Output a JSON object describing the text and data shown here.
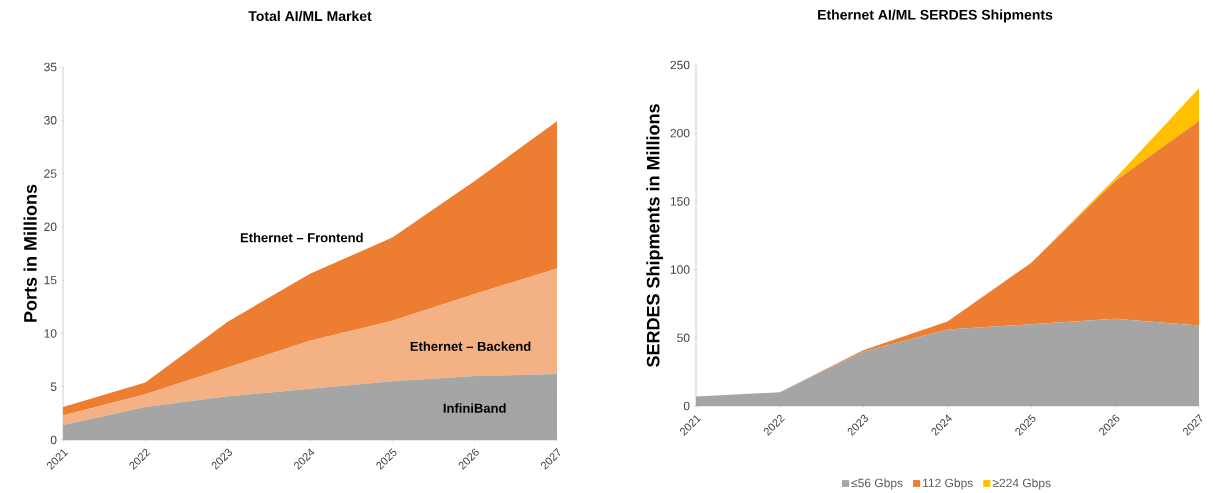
{
  "chart_data": [
    {
      "type": "area",
      "title": "Total AI/ML Market",
      "ylabel": "Ports in Millions",
      "stacked": true,
      "categories": [
        "2021",
        "2022",
        "2023",
        "2024",
        "2025",
        "2026",
        "2027"
      ],
      "ylim": [
        0,
        35
      ],
      "yticks": [
        0,
        5,
        10,
        15,
        20,
        25,
        30,
        35
      ],
      "grid": false,
      "legend": false,
      "series": [
        {
          "name": "InfiniBand",
          "color": "#a5a5a5",
          "values": [
            1.4,
            3.1,
            4.1,
            4.8,
            5.5,
            6.0,
            6.2
          ]
        },
        {
          "name": "Ethernet – Backend",
          "color": "#f4b183",
          "values": [
            0.9,
            1.2,
            2.7,
            4.5,
            5.7,
            7.7,
            9.9
          ]
        },
        {
          "name": "Ethernet – Frontend",
          "color": "#ed7d31",
          "values": [
            0.8,
            1.1,
            4.3,
            6.3,
            7.8,
            10.6,
            13.8
          ]
        }
      ]
    },
    {
      "type": "area",
      "title": "Ethernet AI/ML SERDES Shipments",
      "ylabel": "SERDES Shipments in Millions",
      "stacked": true,
      "categories": [
        "2021",
        "2022",
        "2023",
        "2024",
        "2025",
        "2026",
        "2027"
      ],
      "ylim": [
        0,
        250
      ],
      "yticks": [
        0,
        50,
        100,
        150,
        200,
        250
      ],
      "grid": false,
      "legend": "bottom",
      "series": [
        {
          "name": "≤56 Gbps",
          "color": "#a5a5a5",
          "values": [
            7,
            10,
            40,
            56,
            60,
            64,
            59
          ]
        },
        {
          "name": "112 Gbps",
          "color": "#ed7d31",
          "values": [
            0,
            0,
            1,
            6,
            45,
            101,
            150
          ]
        },
        {
          "name": "≥224 Gbps",
          "color": "#ffc000",
          "values": [
            0,
            0,
            0,
            0,
            0,
            2,
            24
          ]
        }
      ]
    }
  ]
}
